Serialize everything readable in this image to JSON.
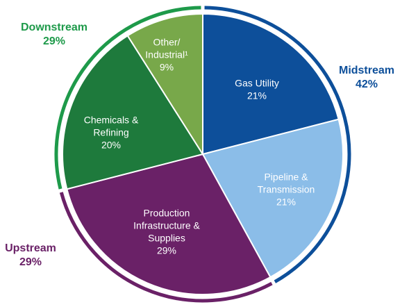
{
  "chart_data": {
    "type": "pie",
    "categories": [
      [
        "Gas Utility"
      ],
      [
        "Pipeline &",
        "Transmission"
      ],
      [
        "Production",
        "Infrastructure &",
        "Supplies"
      ],
      [
        "Chemicals &",
        "Refining"
      ],
      [
        "Other/",
        "Industrial¹"
      ]
    ],
    "values": [
      21,
      21,
      29,
      20,
      9
    ],
    "value_labels": [
      "21%",
      "21%",
      "29%",
      "20%",
      "9%"
    ],
    "colors": [
      "#0d4f9a",
      "#8bbde8",
      "#6a2167",
      "#1e7a3c",
      "#78a84a"
    ],
    "groups": [
      {
        "name": "Midstream",
        "value": 42,
        "value_label": "42%",
        "color": "#0d4f9a"
      },
      {
        "name": "Upstream",
        "value": 29,
        "value_label": "29%",
        "color": "#6a2167"
      },
      {
        "name": "Downstream",
        "value": 29,
        "value_label": "29%",
        "color": "#1e9a4a"
      }
    ]
  }
}
